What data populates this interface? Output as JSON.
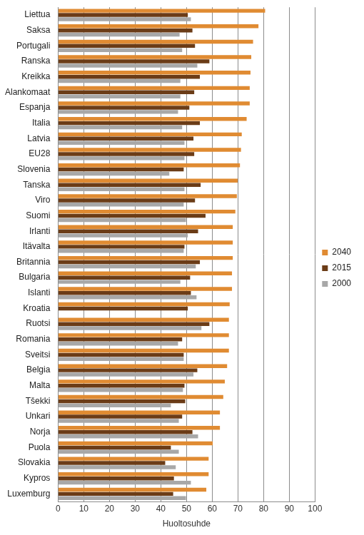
{
  "chart_data": {
    "type": "bar",
    "orientation": "horizontal",
    "x_label": "Huoltosuhde",
    "categories": [
      "Liettua",
      "Saksa",
      "Portugali",
      "Ranska",
      "Kreikka",
      "Alankomaat",
      "Espanja",
      "Italia",
      "Latvia",
      "EU28",
      "Slovenia",
      "Tanska",
      "Viro",
      "Suomi",
      "Irlanti",
      "Itävalta",
      "Britannia",
      "Bulgaria",
      "Islanti",
      "Kroatia",
      "Ruotsi",
      "Romania",
      "Sveitsi",
      "Belgia",
      "Malta",
      "Tšekki",
      "Unkari",
      "Norja",
      "Puola",
      "Slovakia",
      "Kypros",
      "Luxemburg"
    ],
    "series": [
      {
        "name": "2040",
        "color": "#e08b32",
        "values": [
          80.6,
          78.0,
          75.9,
          75.2,
          74.9,
          74.6,
          74.6,
          73.4,
          71.5,
          71.2,
          70.8,
          69.9,
          69.6,
          69.0,
          68.0,
          68.0,
          68.0,
          67.7,
          67.7,
          66.8,
          66.5,
          66.5,
          66.5,
          65.8,
          64.9,
          64.3,
          63.0,
          63.0,
          60.2,
          58.6,
          58.6,
          57.7
        ]
      },
      {
        "name": "2015",
        "color": "#6b3c17",
        "values": [
          50.5,
          52.3,
          53.3,
          58.9,
          55.2,
          53.0,
          51.1,
          55.2,
          52.7,
          53.0,
          48.9,
          55.5,
          53.3,
          57.4,
          54.5,
          49.2,
          55.2,
          51.4,
          51.7,
          50.5,
          58.9,
          48.3,
          48.9,
          54.2,
          49.2,
          49.5,
          48.3,
          52.3,
          43.9,
          41.7,
          45.1,
          44.8
        ]
      },
      {
        "name": "2000",
        "color": "#a8a8a8",
        "values": [
          51.7,
          47.3,
          48.3,
          54.2,
          47.6,
          47.6,
          46.7,
          48.3,
          49.2,
          49.2,
          43.3,
          49.2,
          48.9,
          49.8,
          50.5,
          48.9,
          53.6,
          47.6,
          53.9,
          null,
          55.8,
          46.7,
          48.9,
          52.7,
          48.6,
          43.9,
          47.0,
          54.5,
          47.0,
          45.8,
          51.7,
          49.8
        ]
      }
    ],
    "xlim": [
      0,
      100
    ],
    "xticks": [
      0,
      10,
      20,
      30,
      40,
      50,
      60,
      70,
      80,
      90,
      100
    ],
    "grid": true,
    "legend": "right"
  }
}
